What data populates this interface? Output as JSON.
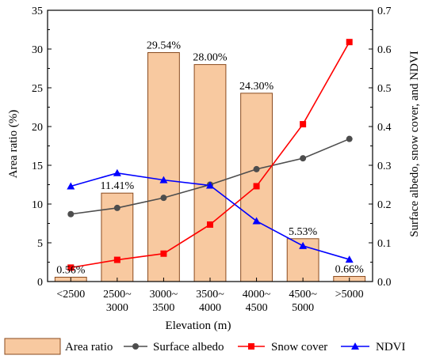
{
  "chart_data": {
    "type": "bar",
    "categories": [
      "<2500",
      "2500~3000",
      "3000~3500",
      "3500~4000",
      "4000~4500",
      "4500~5000",
      ">5000"
    ],
    "category_labels": [
      [
        "<2500"
      ],
      [
        "2500~",
        "3000"
      ],
      [
        "3000~",
        "3500"
      ],
      [
        "3500~",
        "4000"
      ],
      [
        "4000~",
        "4500"
      ],
      [
        "4500~",
        "5000"
      ],
      [
        ">5000"
      ]
    ],
    "xlabel": "Elevation (m)",
    "ylabel_left": "Area ratio (%)",
    "ylabel_right": "Surface albedo, snow cover, and NDVI",
    "ylim_left": [
      0,
      35
    ],
    "ylim_right": [
      0,
      0.7
    ],
    "yticks_left": [
      "0",
      "5",
      "10",
      "15",
      "20",
      "25",
      "30",
      "35"
    ],
    "yticks_right": [
      "0.0",
      "0.1",
      "0.2",
      "0.3",
      "0.4",
      "0.5",
      "0.6",
      "0.7"
    ],
    "series": [
      {
        "name": "Area ratio",
        "type": "bar",
        "axis": "left",
        "color": "#f8c9a0",
        "edge_color": "#8a4a1e",
        "values": [
          0.56,
          11.41,
          29.54,
          28.0,
          24.3,
          5.53,
          0.66
        ],
        "labels": [
          "0.56%",
          "11.41%",
          "29.54%",
          "28.00%",
          "24.30%",
          "5.53%",
          "0.66%"
        ]
      },
      {
        "name": "Surface albedo",
        "type": "line",
        "axis": "right",
        "color": "#4d4d4d",
        "marker": "circle",
        "values": [
          0.174,
          0.19,
          0.216,
          0.25,
          0.29,
          0.318,
          0.368
        ]
      },
      {
        "name": "Snow cover",
        "type": "line",
        "axis": "right",
        "color": "#ff0000",
        "marker": "square",
        "values": [
          0.036,
          0.056,
          0.072,
          0.147,
          0.246,
          0.406,
          0.618
        ]
      },
      {
        "name": "NDVI",
        "type": "line",
        "axis": "right",
        "color": "#0000ff",
        "marker": "triangle",
        "values": [
          0.246,
          0.28,
          0.262,
          0.248,
          0.156,
          0.092,
          0.057
        ]
      }
    ],
    "legend": {
      "position": "bottom",
      "entries": [
        "Area ratio",
        "Surface albedo",
        "Snow cover",
        "NDVI"
      ]
    },
    "grid": false
  }
}
